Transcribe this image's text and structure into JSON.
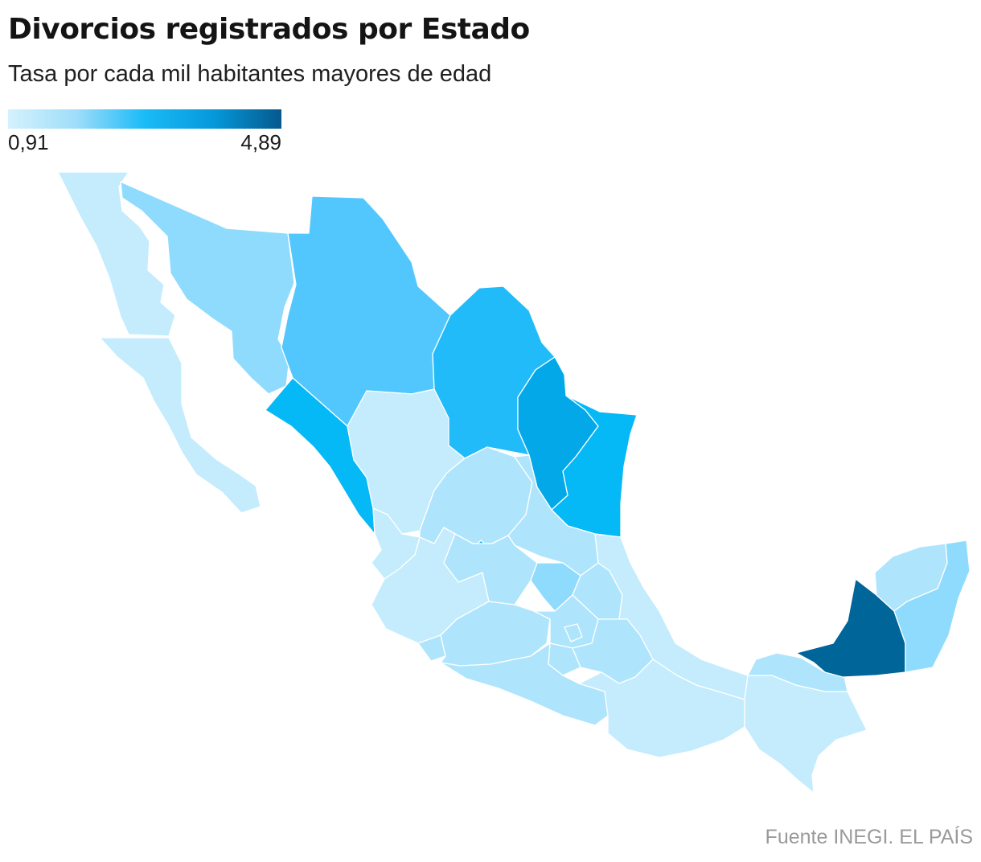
{
  "title": "Divorcios registrados por Estado",
  "subtitle": "Tasa por cada mil habitantes mayores de edad",
  "legend": {
    "min_label": "0,91",
    "max_label": "4,89",
    "min": 0.91,
    "max": 4.89,
    "colors": [
      "#d4f2fd",
      "#9fddfa",
      "#1abbf7",
      "#0599db",
      "#06598e"
    ]
  },
  "source": "Fuente INEGI. EL PAÍS",
  "colors": {
    "c1": "#c4ecfd",
    "c2": "#aee5fc",
    "c3": "#8fdbfd",
    "c4": "#52c7fd",
    "c5": "#21bbfa",
    "c6": "#05b8f6",
    "c7": "#02a8e8",
    "c8": "#006599"
  },
  "states": [
    {
      "name": "Baja California",
      "tone": "c1"
    },
    {
      "name": "Baja California Sur",
      "tone": "c1"
    },
    {
      "name": "Sonora",
      "tone": "c3"
    },
    {
      "name": "Chihuahua",
      "tone": "c4"
    },
    {
      "name": "Coahuila",
      "tone": "c5"
    },
    {
      "name": "Nuevo León",
      "tone": "c7"
    },
    {
      "name": "Tamaulipas",
      "tone": "c6"
    },
    {
      "name": "Sinaloa",
      "tone": "c6"
    },
    {
      "name": "Durango",
      "tone": "c1"
    },
    {
      "name": "Zacatecas",
      "tone": "c2"
    },
    {
      "name": "Nayarit",
      "tone": "c1"
    },
    {
      "name": "Aguascalientes",
      "tone": "c5"
    },
    {
      "name": "San Luis Potosí",
      "tone": "c2"
    },
    {
      "name": "Jalisco",
      "tone": "c1"
    },
    {
      "name": "Colima",
      "tone": "c2"
    },
    {
      "name": "Michoacán",
      "tone": "c2"
    },
    {
      "name": "Guanajuato",
      "tone": "c2"
    },
    {
      "name": "Querétaro",
      "tone": "c3"
    },
    {
      "name": "Hidalgo",
      "tone": "c2"
    },
    {
      "name": "Veracruz",
      "tone": "c1"
    },
    {
      "name": "Estado de México",
      "tone": "c2"
    },
    {
      "name": "Ciudad de México",
      "tone": "c2"
    },
    {
      "name": "Morelos",
      "tone": "c2"
    },
    {
      "name": "Tlaxcala",
      "tone": "c2"
    },
    {
      "name": "Puebla",
      "tone": "c2"
    },
    {
      "name": "Guerrero",
      "tone": "c2"
    },
    {
      "name": "Oaxaca",
      "tone": "c1"
    },
    {
      "name": "Chiapas",
      "tone": "c1"
    },
    {
      "name": "Tabasco",
      "tone": "c2"
    },
    {
      "name": "Campeche",
      "tone": "c8"
    },
    {
      "name": "Yucatán",
      "tone": "c2"
    },
    {
      "name": "Quintana Roo",
      "tone": "c3"
    }
  ]
}
